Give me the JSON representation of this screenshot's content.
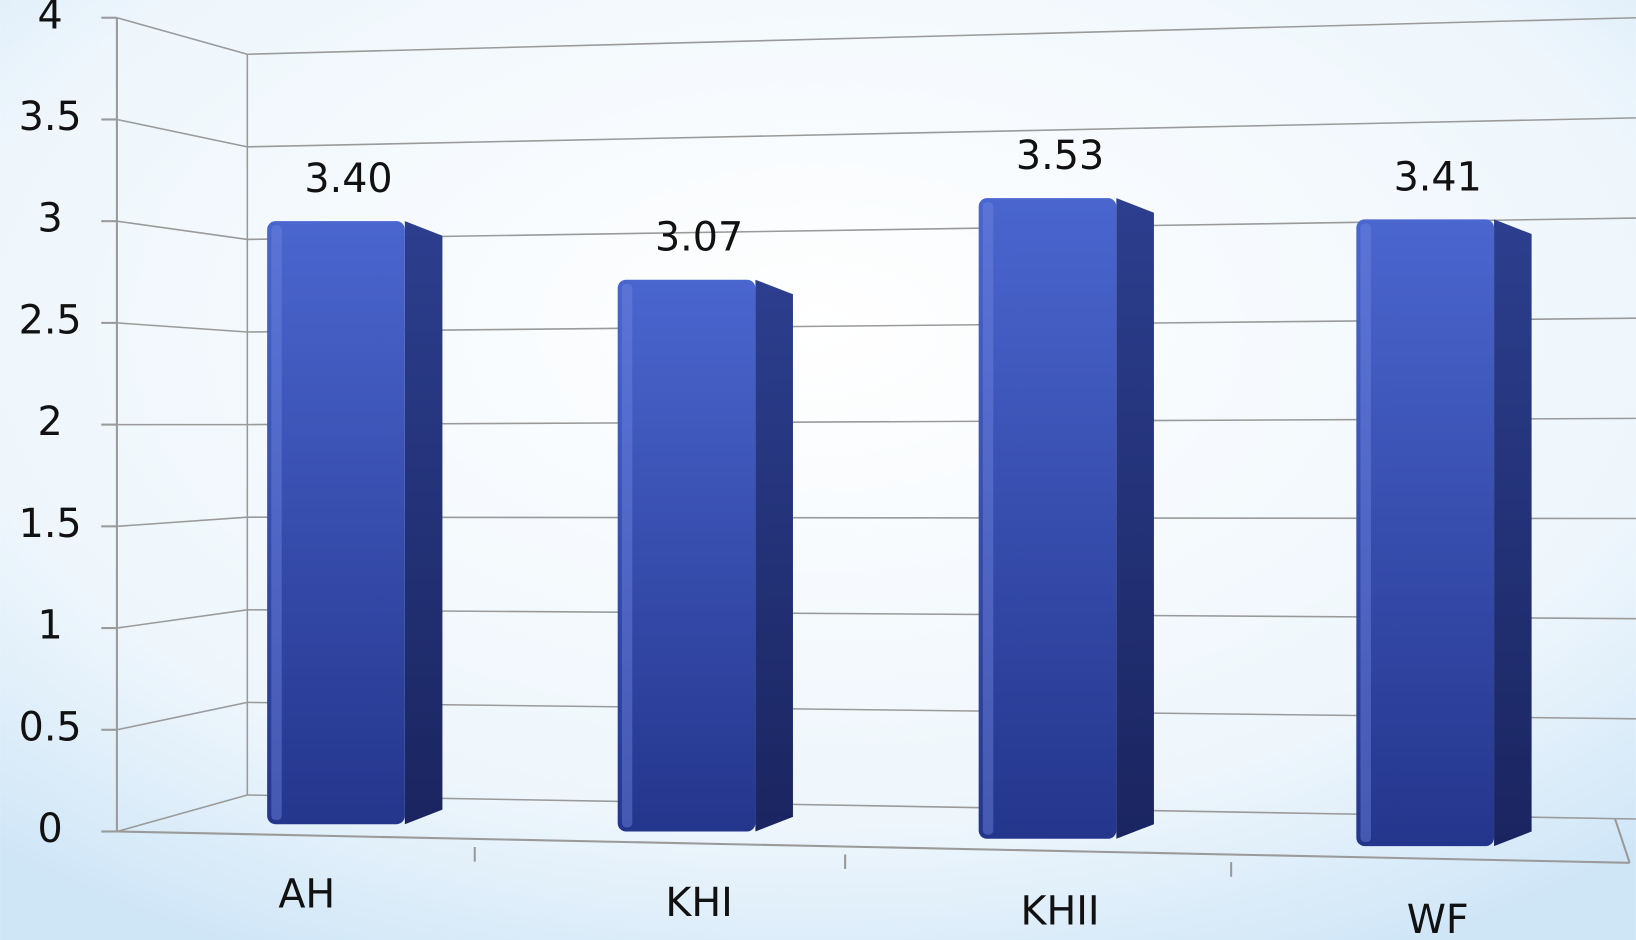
{
  "chart_data": {
    "type": "bar3d",
    "categories": [
      "AH",
      "KHI",
      "KHII",
      "WF"
    ],
    "values": [
      3.4,
      3.07,
      3.53,
      3.41
    ],
    "value_labels": [
      "3.40",
      "3.07",
      "3.53",
      "3.41"
    ],
    "color": "#3a52b8",
    "ylim": [
      0,
      4
    ],
    "yticks": [
      0,
      0.5,
      1,
      1.5,
      2,
      2.5,
      3,
      3.5,
      4
    ],
    "grid": true
  }
}
